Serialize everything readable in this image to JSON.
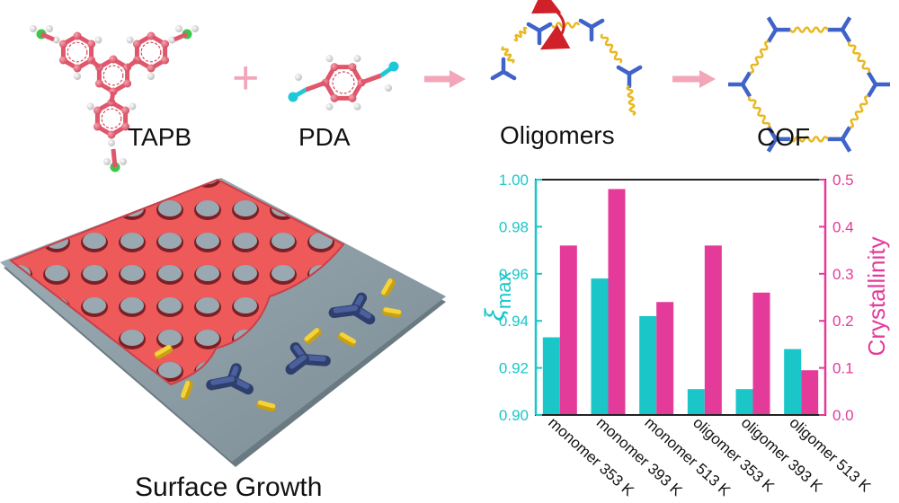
{
  "scheme": {
    "molecules": [
      "TAPB",
      "PDA",
      "Oligomers",
      "COF"
    ],
    "plus_symbol": "+",
    "surface_caption": "Surface Growth"
  },
  "colors": {
    "molecule_pink": "#e0566b",
    "amine_green": "#3cc64c",
    "aldehyde_cyan": "#1ec8d8",
    "linker_blue": "#3f63c9",
    "spring_yellow": "#e9b820",
    "arrow_pink": "#f2a6b8",
    "rotation_red": "#d0202a",
    "cof_red": "#ee5a5a",
    "substrate": "#8e9ea6",
    "bar_cyan": "#1bc6c9",
    "bar_magenta": "#e43a9a"
  },
  "chart_data": {
    "type": "bar",
    "categories": [
      "monomer 353 K",
      "monomer 393 K",
      "monomer 513 K",
      "oligomer 353 K",
      "oligomer 393 K",
      "oligomer 513 K"
    ],
    "series": [
      {
        "name": "ξmax",
        "axis": "left",
        "values": [
          0.933,
          0.958,
          0.942,
          0.911,
          0.911,
          0.928
        ]
      },
      {
        "name": "Crystallinity",
        "axis": "right",
        "values": [
          0.36,
          0.48,
          0.24,
          0.36,
          0.26,
          0.095
        ]
      }
    ],
    "y_left": {
      "label_main": "ξ",
      "label_sub": "max",
      "range": [
        0.9,
        1.0
      ],
      "ticks": [
        "0.90",
        "0.92",
        "0.94",
        "0.96",
        "0.98",
        "1.00"
      ]
    },
    "y_right": {
      "label": "Crystallinity",
      "range": [
        0.0,
        0.5
      ],
      "ticks": [
        "0.0",
        "0.1",
        "0.2",
        "0.3",
        "0.4",
        "0.5"
      ]
    }
  }
}
